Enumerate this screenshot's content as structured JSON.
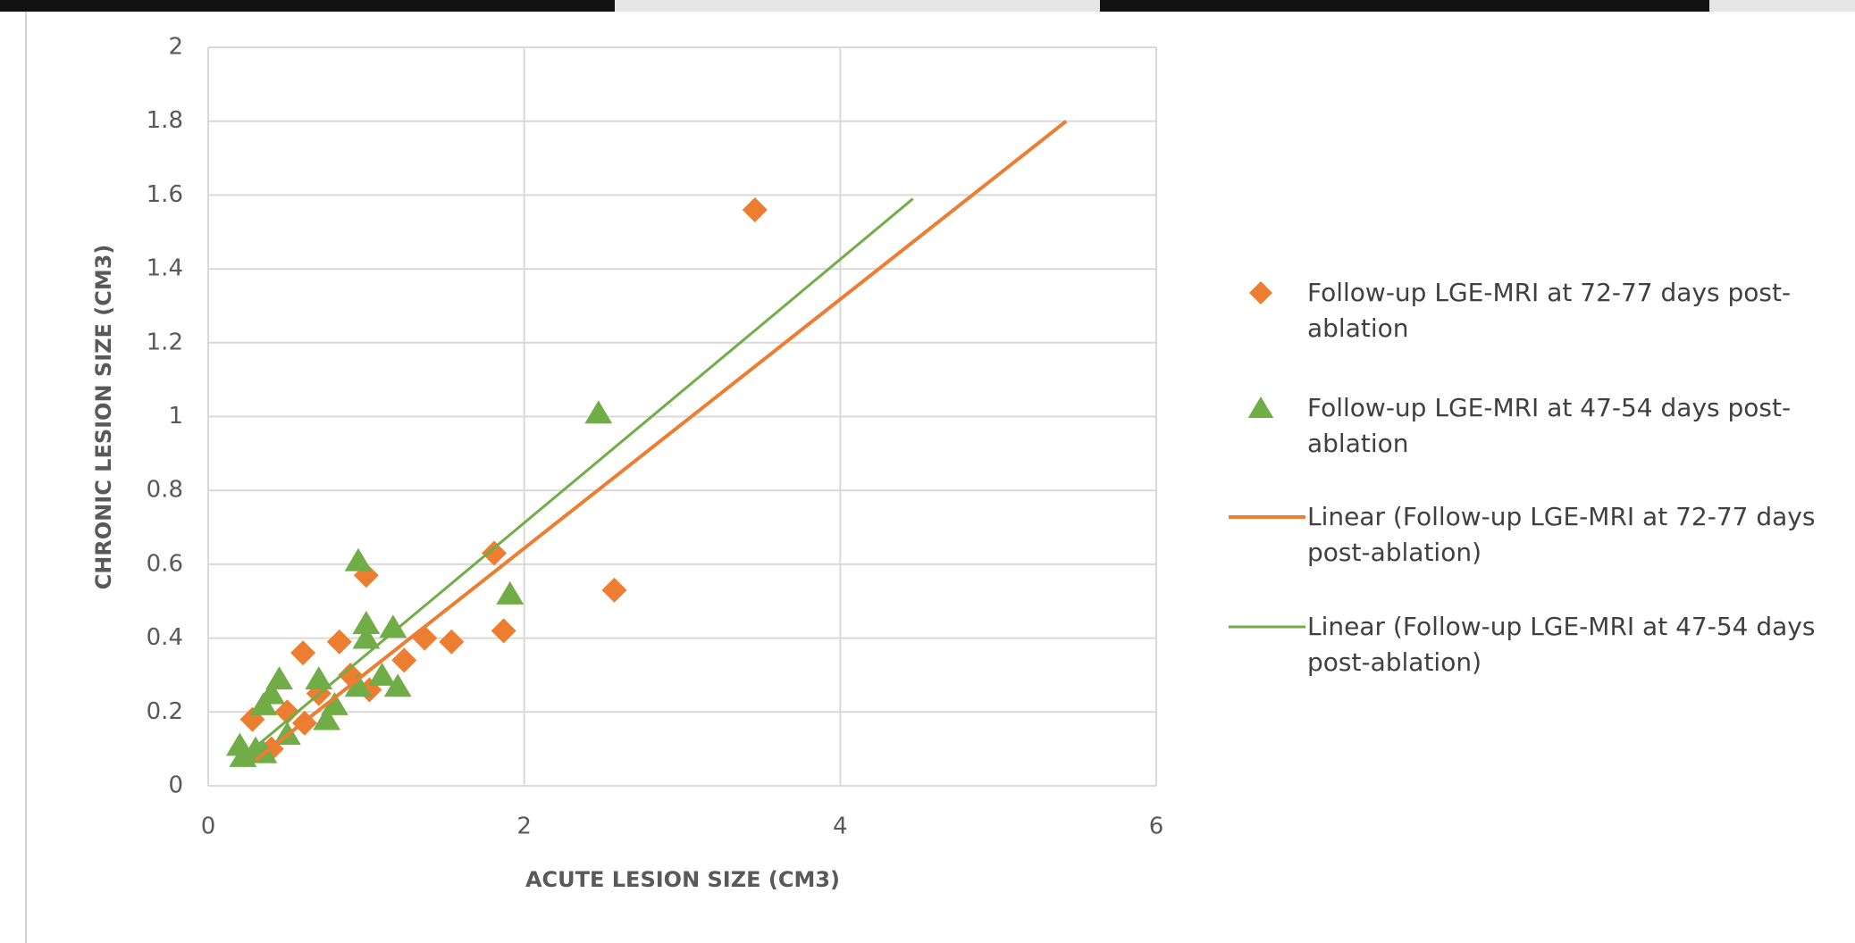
{
  "chart_data": {
    "type": "scatter",
    "x_label": "ACUTE LESION SIZE (CM3)",
    "y_label": "CHRONIC LESION SIZE (CM3)",
    "xlim": [
      0,
      6
    ],
    "xticks": [
      0,
      2,
      4,
      6
    ],
    "ylim": [
      0,
      2
    ],
    "yticks": [
      0,
      0.2,
      0.4,
      0.6,
      0.8,
      1,
      1.2,
      1.4,
      1.6,
      1.8,
      2
    ],
    "grid": true,
    "legend": "right",
    "series": [
      {
        "name": "Follow-up LGE-MRI at 72-77 days post-ablation",
        "type": "scatter",
        "marker": "diamond",
        "color": "#ed7d31",
        "x": [
          3.46,
          2.57,
          1.87,
          1.81,
          1.0,
          0.6,
          0.83,
          1.37,
          1.54,
          1.24,
          1.02,
          0.28,
          0.61,
          0.7,
          0.9,
          0.4,
          0.5
        ],
        "values": [
          1.56,
          0.53,
          0.42,
          0.63,
          0.57,
          0.36,
          0.39,
          0.4,
          0.39,
          0.34,
          0.26,
          0.18,
          0.17,
          0.25,
          0.3,
          0.1,
          0.2
        ]
      },
      {
        "name": "Follow-up LGE-MRI at 47-54 days post-ablation",
        "type": "scatter",
        "marker": "triangle",
        "color": "#70ad47",
        "x": [
          2.47,
          1.91,
          0.95,
          1.0,
          1.17,
          1.1,
          1.2,
          0.95,
          0.7,
          0.75,
          0.45,
          0.4,
          0.35,
          0.5,
          0.3,
          0.2,
          0.22,
          0.35,
          0.8,
          1.0
        ],
        "values": [
          1.01,
          0.52,
          0.61,
          0.44,
          0.43,
          0.3,
          0.27,
          0.27,
          0.29,
          0.18,
          0.29,
          0.25,
          0.22,
          0.14,
          0.1,
          0.11,
          0.08,
          0.09,
          0.22,
          0.4
        ]
      },
      {
        "name": "Linear (Follow-up LGE-MRI at 72-77 days post-ablation)",
        "type": "line",
        "color": "#ed7d31",
        "x": [
          0.3,
          5.43
        ],
        "values": [
          0.07,
          1.8
        ]
      },
      {
        "name": "Linear (Follow-up LGE-MRI at 47-54 days post-ablation)",
        "type": "line",
        "color": "#70ad47",
        "x": [
          0.2,
          4.46
        ],
        "values": [
          0.07,
          1.59
        ]
      }
    ]
  }
}
